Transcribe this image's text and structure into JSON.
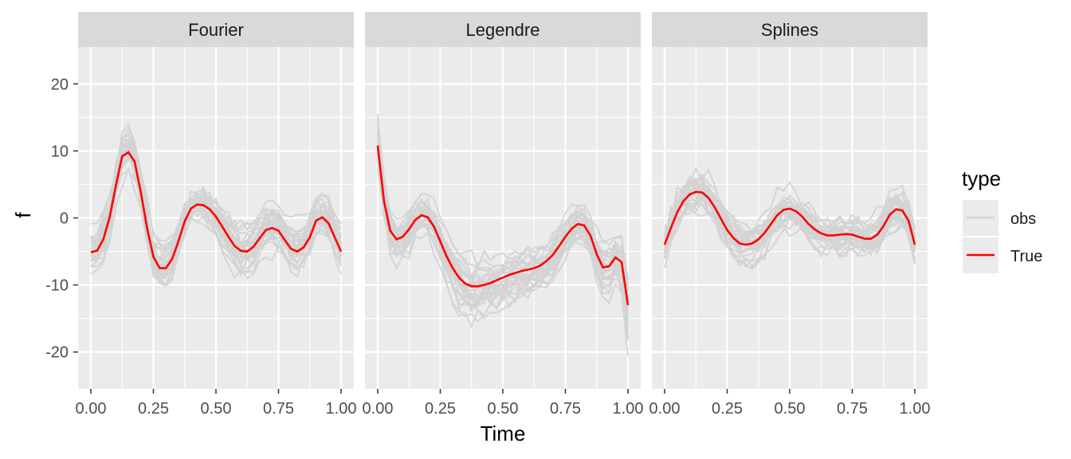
{
  "chart_data": {
    "type": "line",
    "xlabel": "Time",
    "ylabel": "f",
    "xlim": [
      0,
      1
    ],
    "ylim": [
      -25.5,
      25.5
    ],
    "x_ticks": [
      "0.00",
      "0.25",
      "0.50",
      "0.75",
      "1.00"
    ],
    "y_ticks": [
      "20",
      "10",
      "0",
      "-10",
      "-20"
    ],
    "legend": {
      "title": "type",
      "placement": "right",
      "items": [
        {
          "label": "obs",
          "color": "#d3d3d3"
        },
        {
          "label": "True",
          "color": "#ff0000"
        }
      ]
    },
    "colors": {
      "panel_bg": "#ebebeb",
      "strip_bg": "#d9d9d9",
      "grid": "#ffffff",
      "obs": "#d3d3d3",
      "true": "#ff0000"
    },
    "panels": [
      {
        "title": "Fourier",
        "true_x": [
          0,
          0.025,
          0.05,
          0.075,
          0.1,
          0.125,
          0.15,
          0.175,
          0.2,
          0.225,
          0.25,
          0.275,
          0.3,
          0.325,
          0.35,
          0.375,
          0.4,
          0.425,
          0.45,
          0.475,
          0.5,
          0.525,
          0.55,
          0.575,
          0.6,
          0.625,
          0.65,
          0.675,
          0.7,
          0.725,
          0.75,
          0.775,
          0.8,
          0.825,
          0.85,
          0.875,
          0.9,
          0.925,
          0.95,
          0.975,
          1.0
        ],
        "true_y": [
          -5.1,
          -4.9,
          -3.2,
          0.1,
          4.8,
          9.2,
          9.8,
          8.4,
          3.8,
          -1.6,
          -5.8,
          -7.5,
          -7.5,
          -6.1,
          -3.5,
          -0.5,
          1.4,
          2.0,
          1.9,
          1.3,
          0.2,
          -1.3,
          -2.8,
          -4.2,
          -4.9,
          -5.0,
          -4.3,
          -3.0,
          -1.8,
          -1.5,
          -1.9,
          -3.3,
          -4.6,
          -5.0,
          -4.4,
          -2.9,
          -0.4,
          0.1,
          -0.8,
          -2.9,
          -5.0
        ],
        "obs_count": 30,
        "obs_y_range": [
          -15,
          15.8
        ]
      },
      {
        "title": "Legendre",
        "true_x": [
          0,
          0.025,
          0.05,
          0.075,
          0.1,
          0.125,
          0.15,
          0.175,
          0.2,
          0.225,
          0.25,
          0.275,
          0.3,
          0.325,
          0.35,
          0.375,
          0.4,
          0.425,
          0.45,
          0.475,
          0.5,
          0.525,
          0.55,
          0.575,
          0.6,
          0.625,
          0.65,
          0.675,
          0.7,
          0.725,
          0.75,
          0.775,
          0.8,
          0.825,
          0.85,
          0.875,
          0.9,
          0.925,
          0.95,
          0.975,
          1.0
        ],
        "true_y": [
          10.8,
          2.5,
          -1.9,
          -3.2,
          -2.8,
          -1.7,
          -0.3,
          0.4,
          0.1,
          -1.3,
          -3.5,
          -5.7,
          -7.5,
          -8.9,
          -9.8,
          -10.2,
          -10.2,
          -10.0,
          -9.7,
          -9.3,
          -8.9,
          -8.5,
          -8.2,
          -7.9,
          -7.7,
          -7.5,
          -7.1,
          -6.4,
          -5.5,
          -4.2,
          -2.8,
          -1.6,
          -0.9,
          -1.1,
          -2.6,
          -5.4,
          -7.4,
          -7.2,
          -5.9,
          -6.6,
          -13.0
        ],
        "obs_count": 30,
        "obs_y_range": [
          -23.8,
          20.2
        ]
      },
      {
        "title": "Splines",
        "true_x": [
          0,
          0.025,
          0.05,
          0.075,
          0.1,
          0.125,
          0.15,
          0.175,
          0.2,
          0.225,
          0.25,
          0.275,
          0.3,
          0.325,
          0.35,
          0.375,
          0.4,
          0.425,
          0.45,
          0.475,
          0.5,
          0.525,
          0.55,
          0.575,
          0.6,
          0.625,
          0.65,
          0.675,
          0.7,
          0.725,
          0.75,
          0.775,
          0.8,
          0.825,
          0.85,
          0.875,
          0.9,
          0.925,
          0.95,
          0.975,
          1.0
        ],
        "true_y": [
          -4.0,
          -1.5,
          0.8,
          2.5,
          3.5,
          3.9,
          3.8,
          3.0,
          1.6,
          -0.1,
          -1.8,
          -3.0,
          -3.8,
          -4.0,
          -3.8,
          -3.2,
          -2.2,
          -0.9,
          0.4,
          1.2,
          1.4,
          1.0,
          0.2,
          -0.9,
          -1.7,
          -2.3,
          -2.6,
          -2.6,
          -2.5,
          -2.4,
          -2.5,
          -2.8,
          -3.1,
          -3.1,
          -2.5,
          -1.2,
          0.5,
          1.3,
          1.1,
          -0.4,
          -4.0
        ],
        "obs_count": 30,
        "obs_y_range": [
          -10,
          8.4
        ]
      }
    ]
  }
}
